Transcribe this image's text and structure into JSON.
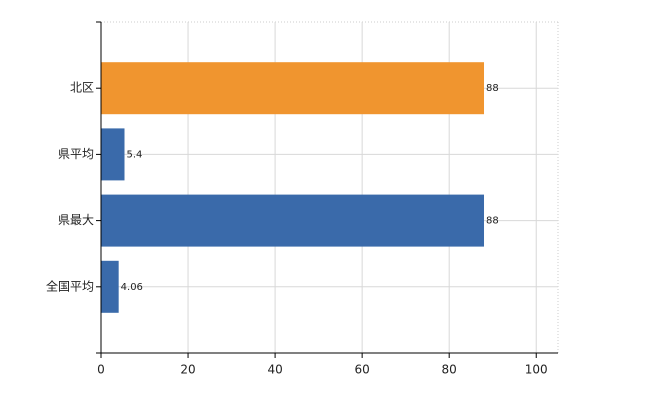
{
  "chart_data": {
    "type": "bar",
    "orientation": "horizontal",
    "categories": [
      "北区",
      "県平均",
      "県最大",
      "全国平均"
    ],
    "values": [
      88,
      5.4,
      88,
      4.06
    ],
    "colors": [
      "#f0952f",
      "#3a6aaa",
      "#3a6aaa",
      "#3a6aaa"
    ],
    "xlim": [
      0,
      105
    ],
    "xticks": [
      0,
      20,
      40,
      60,
      80,
      100
    ],
    "grid": true
  }
}
